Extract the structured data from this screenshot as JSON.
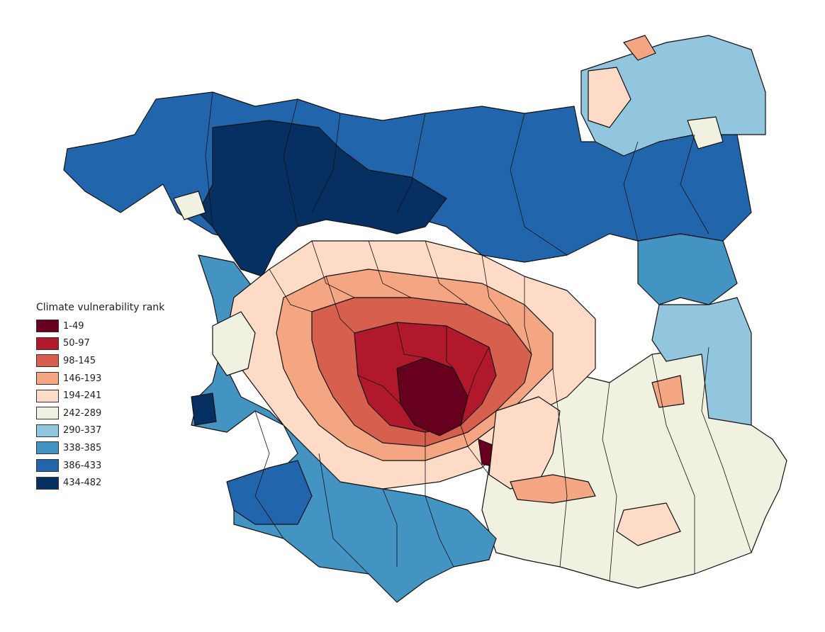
{
  "legend": {
    "title": "Climate vulnerability rank",
    "classes": [
      {
        "label": "1-49",
        "color": "#67001f"
      },
      {
        "label": "50-97",
        "color": "#b2182b"
      },
      {
        "label": "98-145",
        "color": "#d6604d"
      },
      {
        "label": "146-193",
        "color": "#f4a582"
      },
      {
        "label": "194-241",
        "color": "#fddbc7"
      },
      {
        "label": "242-289",
        "color": "#f1f1e1"
      },
      {
        "label": "290-337",
        "color": "#92c5de"
      },
      {
        "label": "338-385",
        "color": "#4393c3"
      },
      {
        "label": "386-433",
        "color": "#2166ac"
      },
      {
        "label": "434-482",
        "color": "#053061"
      }
    ]
  }
}
